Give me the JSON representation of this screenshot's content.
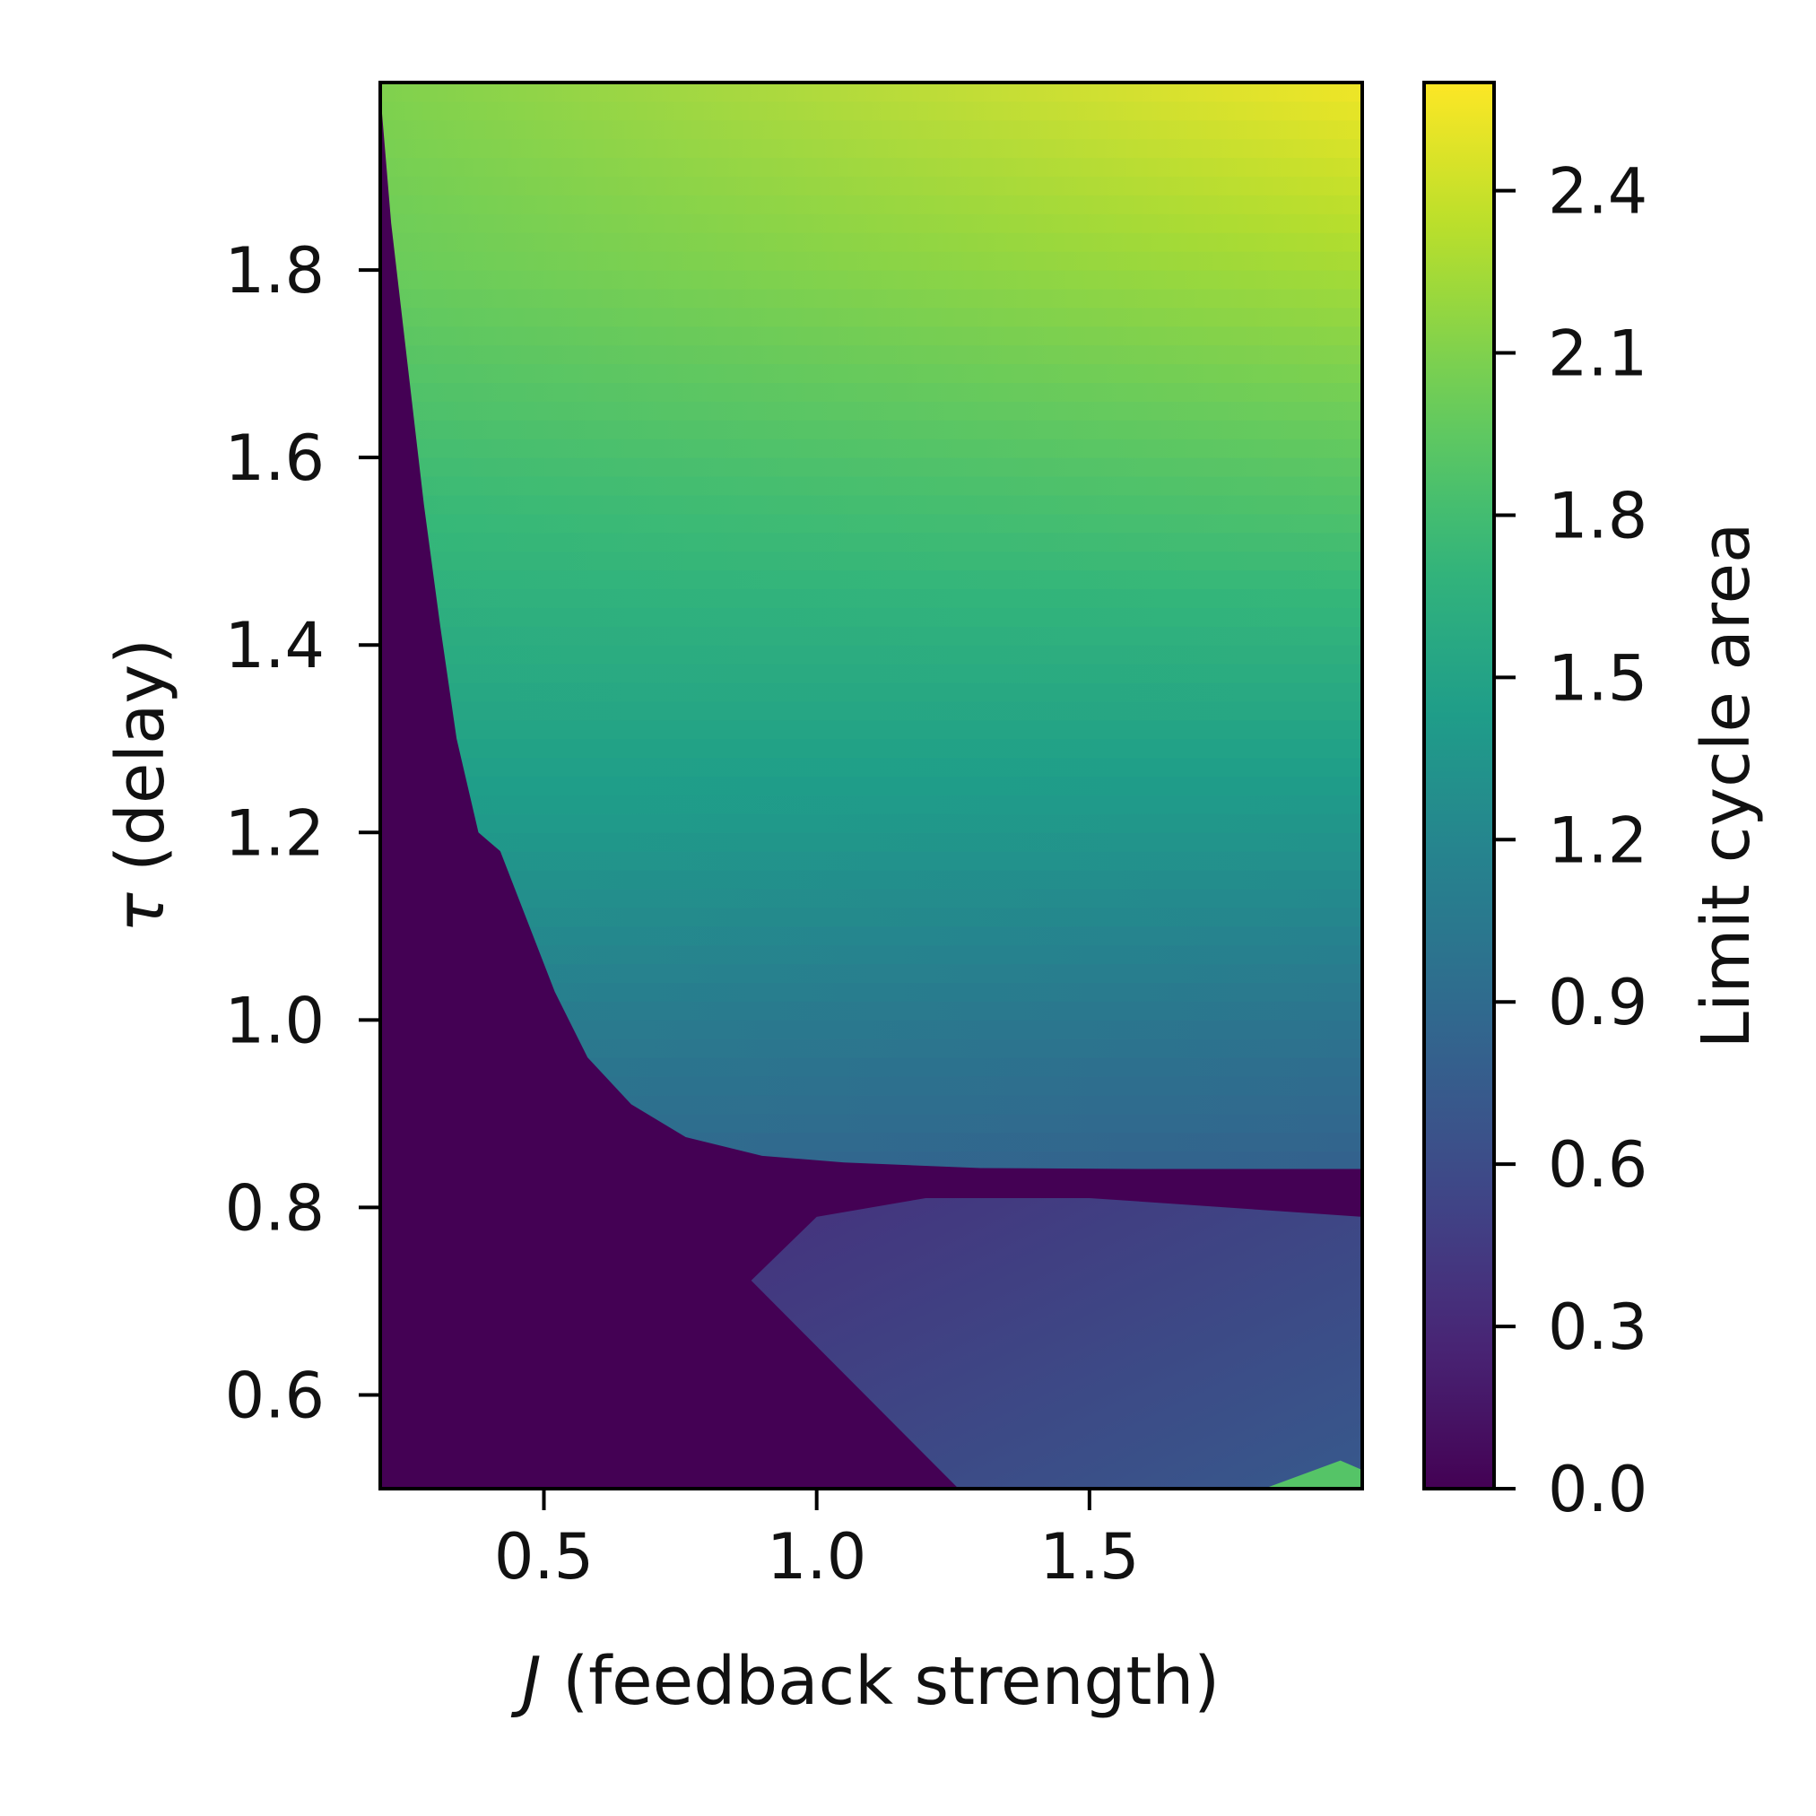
{
  "chart_data": {
    "type": "heatmap",
    "title": "",
    "xlabel": {
      "italic": "J",
      "rest": " (feedback strength)"
    },
    "ylabel": {
      "italic": "τ",
      "rest": " (delay)"
    },
    "xlim": [
      0.2,
      2.0
    ],
    "ylim": [
      0.5,
      2.0
    ],
    "xticks": [
      {
        "value": 0.5,
        "label": "0.5"
      },
      {
        "value": 1.0,
        "label": "1.0"
      },
      {
        "value": 1.5,
        "label": "1.5"
      }
    ],
    "yticks": [
      {
        "value": 0.6,
        "label": "0.6"
      },
      {
        "value": 0.8,
        "label": "0.8"
      },
      {
        "value": 1.0,
        "label": "1.0"
      },
      {
        "value": 1.2,
        "label": "1.2"
      },
      {
        "value": 1.4,
        "label": "1.4"
      },
      {
        "value": 1.6,
        "label": "1.6"
      },
      {
        "value": 1.8,
        "label": "1.8"
      }
    ],
    "colorbar": {
      "label": "Limit cycle area",
      "range": [
        0.0,
        2.6
      ],
      "colormap": "viridis",
      "ticks": [
        {
          "value": 0.0,
          "label": "0.0"
        },
        {
          "value": 0.3,
          "label": "0.3"
        },
        {
          "value": 0.6,
          "label": "0.6"
        },
        {
          "value": 0.9,
          "label": "0.9"
        },
        {
          "value": 1.2,
          "label": "1.2"
        },
        {
          "value": 1.5,
          "label": "1.5"
        },
        {
          "value": 1.8,
          "label": "1.8"
        },
        {
          "value": 2.1,
          "label": "2.1"
        },
        {
          "value": 2.4,
          "label": "2.4"
        }
      ]
    },
    "oscillation_boundary": [
      [
        0.2,
        1.99
      ],
      [
        0.22,
        1.85
      ],
      [
        0.25,
        1.7
      ],
      [
        0.28,
        1.55
      ],
      [
        0.31,
        1.42
      ],
      [
        0.34,
        1.3
      ],
      [
        0.38,
        1.2
      ],
      [
        0.4,
        1.19
      ],
      [
        0.42,
        1.18
      ],
      [
        0.46,
        1.12
      ],
      [
        0.52,
        1.03
      ],
      [
        0.58,
        0.96
      ],
      [
        0.66,
        0.91
      ],
      [
        0.76,
        0.875
      ],
      [
        0.9,
        0.855
      ],
      [
        1.05,
        0.848
      ],
      [
        1.3,
        0.842
      ],
      [
        1.6,
        0.841
      ],
      [
        2.0,
        0.841
      ]
    ],
    "upper_region_area": {
      "tau_samples": [
        0.84,
        1.0,
        1.2,
        1.4,
        1.6,
        1.8,
        2.0
      ],
      "area_at_low_J": [
        0.9,
        1.1,
        1.4,
        1.6,
        1.8,
        2.0,
        2.1
      ],
      "area_at_high_J": [
        0.8,
        1.0,
        1.35,
        1.65,
        1.95,
        2.25,
        2.55
      ]
    },
    "lower_region": {
      "area_value": 0.5,
      "corner_area_value": 1.9,
      "polygon": [
        [
          0.88,
          0.722
        ],
        [
          1.0,
          0.79
        ],
        [
          1.2,
          0.81
        ],
        [
          1.5,
          0.81
        ],
        [
          2.0,
          0.79
        ],
        [
          2.0,
          0.5
        ],
        [
          1.26,
          0.5
        ]
      ],
      "corner_polygon": [
        [
          1.82,
          0.5
        ],
        [
          1.96,
          0.53
        ],
        [
          2.0,
          0.52
        ],
        [
          2.0,
          0.5
        ]
      ]
    }
  }
}
